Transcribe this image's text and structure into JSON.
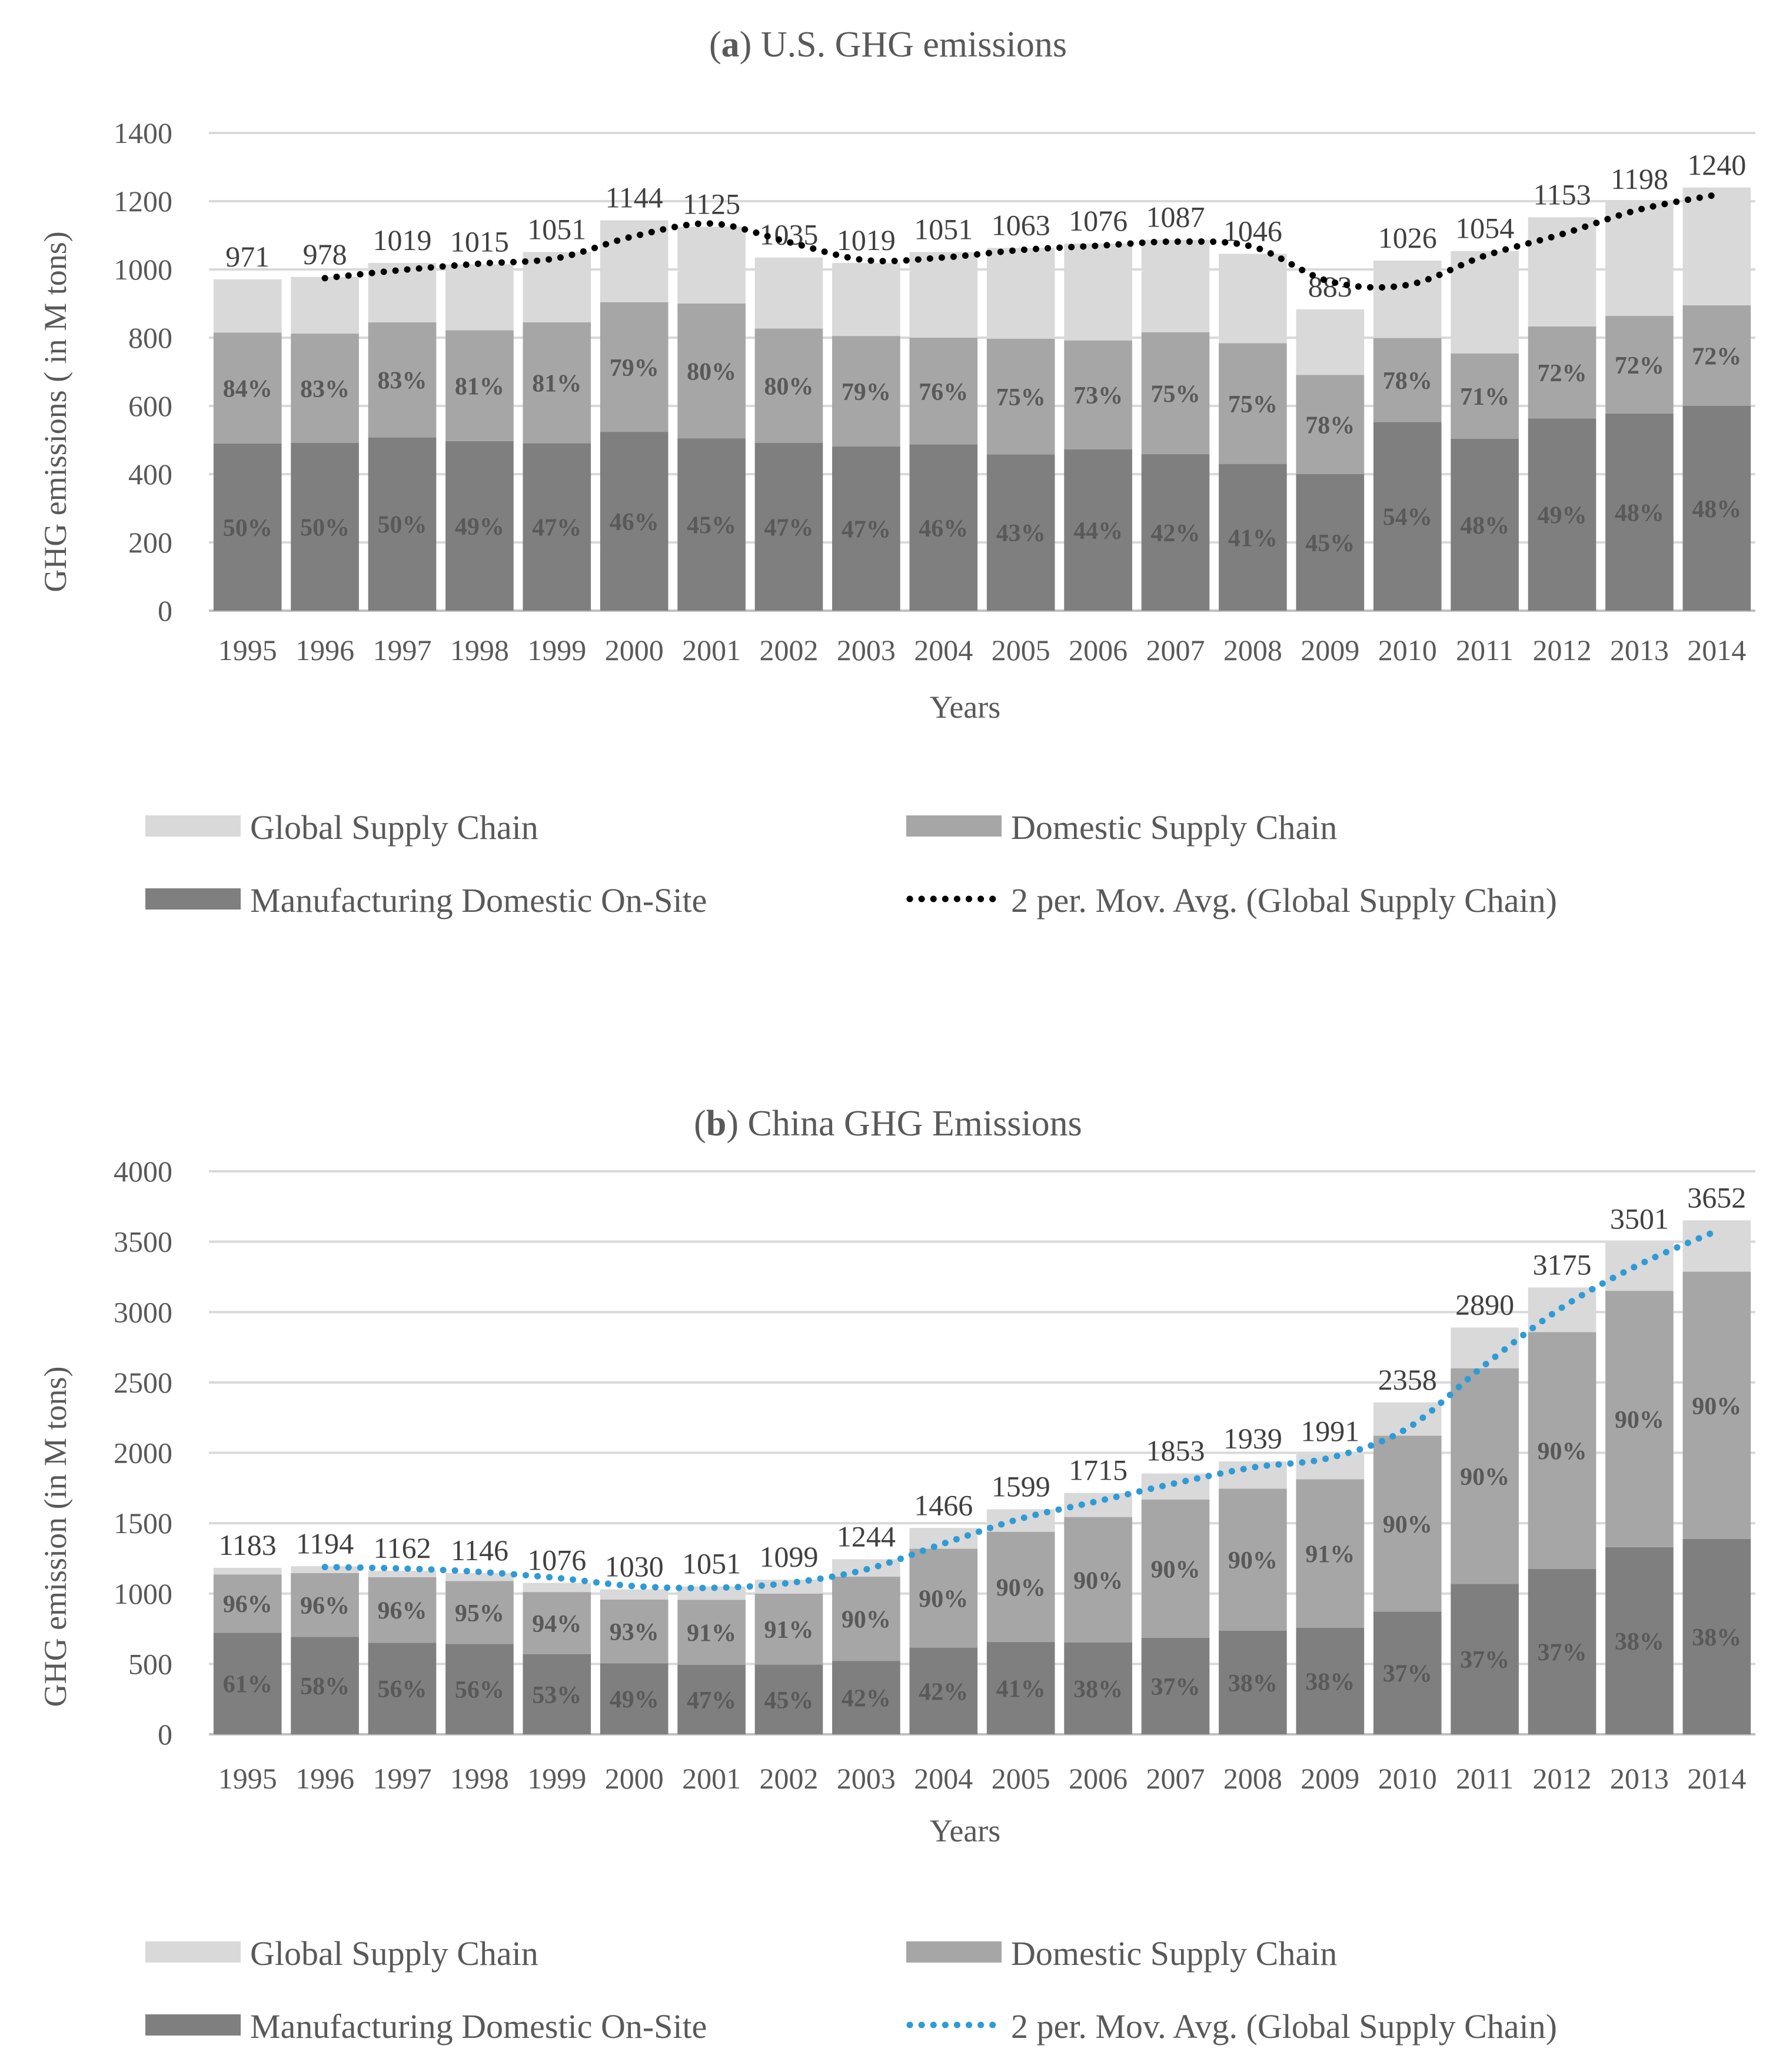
{
  "chart_data": [
    {
      "type": "bar",
      "stacked": true,
      "title_prefix": "(",
      "title_letter": "a",
      "title_rest": ") U.S. GHG emissions",
      "xlabel": "Years",
      "ylabel": "GHG emissions ( in M tons)",
      "ylim": [
        0,
        1400
      ],
      "yticks": [
        0,
        200,
        400,
        600,
        800,
        1000,
        1200,
        1400
      ],
      "grid": true,
      "categories": [
        "1995",
        "1996",
        "1997",
        "1998",
        "1999",
        "2000",
        "2001",
        "2002",
        "2003",
        "2004",
        "2005",
        "2006",
        "2007",
        "2008",
        "2009",
        "2010",
        "2011",
        "2012",
        "2013",
        "2014"
      ],
      "series": [
        {
          "name": "Manufacturing Domestic On-Site",
          "color": "#7f7f7f",
          "values": [
            490,
            492,
            508,
            497,
            491,
            524,
            505,
            492,
            481,
            487,
            458,
            473,
            459,
            430,
            400,
            553,
            504,
            563,
            578,
            600
          ],
          "labels": [
            "50%",
            "50%",
            "50%",
            "49%",
            "47%",
            "46%",
            "45%",
            "47%",
            "47%",
            "46%",
            "43%",
            "44%",
            "42%",
            "41%",
            "45%",
            "54%",
            "48%",
            "49%",
            "48%",
            "48%"
          ]
        },
        {
          "name": "Domestic Supply Chain",
          "color": "#a6a6a6",
          "values": [
            325,
            320,
            337,
            325,
            354,
            380,
            395,
            335,
            324,
            313,
            339,
            319,
            357,
            354,
            291,
            246,
            250,
            270,
            286,
            295
          ],
          "labels": [
            "84%",
            "83%",
            "83%",
            "81%",
            "81%",
            "79%",
            "80%",
            "80%",
            "79%",
            "76%",
            "75%",
            "73%",
            "75%",
            "75%",
            "78%",
            "78%",
            "71%",
            "72%",
            "72%",
            "72%"
          ]
        },
        {
          "name": "Global Supply Chain",
          "color": "#d9d9d9",
          "values": [
            156,
            166,
            174,
            193,
            206,
            240,
            225,
            208,
            214,
            251,
            266,
            284,
            271,
            262,
            192,
            227,
            300,
            320,
            334,
            345
          ],
          "totals": [
            "971",
            "978",
            "1019",
            "1015",
            "1051",
            "1144",
            "1125",
            "1035",
            "1019",
            "1051",
            "1063",
            "1076",
            "1087",
            "1046",
            "883",
            "1026",
            "1054",
            "1153",
            "1198",
            "1240"
          ]
        }
      ],
      "moving_average": {
        "name": "2 per. Mov. Avg. (Global Supply Chain)",
        "color": "#000000",
        "values": [
          null,
          974.5,
          998.5,
          1017,
          1033,
          1097.5,
          1134.5,
          1080,
          1027,
          1035,
          1057,
          1069.5,
          1081.5,
          1066.5,
          964.5,
          954.5,
          1040,
          1103.5,
          1175.5,
          1219
        ]
      },
      "legend": [
        "Global Supply Chain",
        "Domestic Supply Chain",
        "Manufacturing Domestic On-Site",
        "2 per. Mov. Avg. (Global Supply Chain)"
      ]
    },
    {
      "type": "bar",
      "stacked": true,
      "title_prefix": "(",
      "title_letter": "b",
      "title_rest": ") China GHG Emissions",
      "xlabel": "Years",
      "ylabel": "GHG emission (in M tons)",
      "ylim": [
        0,
        4000
      ],
      "yticks": [
        0,
        500,
        1000,
        1500,
        2000,
        2500,
        3000,
        3500,
        4000
      ],
      "grid": true,
      "categories": [
        "1995",
        "1996",
        "1997",
        "1998",
        "1999",
        "2000",
        "2001",
        "2002",
        "2003",
        "2004",
        "2005",
        "2006",
        "2007",
        "2008",
        "2009",
        "2010",
        "2011",
        "2012",
        "2013",
        "2014"
      ],
      "series": [
        {
          "name": "Manufacturing Domestic On-Site",
          "color": "#7f7f7f",
          "values": [
            722,
            693,
            651,
            642,
            570,
            505,
            494,
            495,
            522,
            616,
            656,
            652,
            686,
            737,
            757,
            872,
            1069,
            1175,
            1330,
            1388
          ],
          "labels": [
            "61%",
            "58%",
            "56%",
            "56%",
            "53%",
            "49%",
            "47%",
            "45%",
            "42%",
            "42%",
            "41%",
            "38%",
            "37%",
            "38%",
            "38%",
            "37%",
            "37%",
            "37%",
            "38%",
            "38%"
          ]
        },
        {
          "name": "Domestic Supply Chain",
          "color": "#a6a6a6",
          "values": [
            414,
            453,
            465,
            447,
            441,
            453,
            462,
            505,
            598,
            703,
            783,
            892,
            982,
            1008,
            1055,
            1250,
            1532,
            1683,
            1821,
            1899
          ],
          "labels": [
            "96%",
            "96%",
            "96%",
            "95%",
            "94%",
            "93%",
            "91%",
            "91%",
            "90%",
            "90%",
            "90%",
            "90%",
            "90%",
            "90%",
            "91%",
            "90%",
            "90%",
            "90%",
            "90%",
            "90%"
          ]
        },
        {
          "name": "Global Supply Chain",
          "color": "#d9d9d9",
          "values": [
            47,
            48,
            46,
            57,
            65,
            72,
            95,
            99,
            124,
            147,
            160,
            171,
            185,
            194,
            179,
            236,
            289,
            317,
            350,
            365
          ],
          "totals": [
            "1183",
            "1194",
            "1162",
            "1146",
            "1076",
            "1030",
            "1051",
            "1099",
            "1244",
            "1466",
            "1599",
            "1715",
            "1853",
            "1939",
            "1991",
            "2358",
            "2890",
            "3175",
            "3501",
            "3652"
          ]
        }
      ],
      "moving_average": {
        "name": "2 per. Mov. Avg. (Global Supply Chain)",
        "color": "#2e9bd6",
        "values": [
          null,
          1188.5,
          1178,
          1154,
          1111,
          1053,
          1040.5,
          1075,
          1171.5,
          1355,
          1532.5,
          1657,
          1784,
          1896,
          1965,
          2174.5,
          2624,
          3032.5,
          3338,
          3576.5
        ]
      },
      "legend": [
        "Global Supply Chain",
        "Domestic Supply Chain",
        "Manufacturing Domestic On-Site",
        "2 per. Mov. Avg. (Global Supply Chain)"
      ]
    }
  ]
}
